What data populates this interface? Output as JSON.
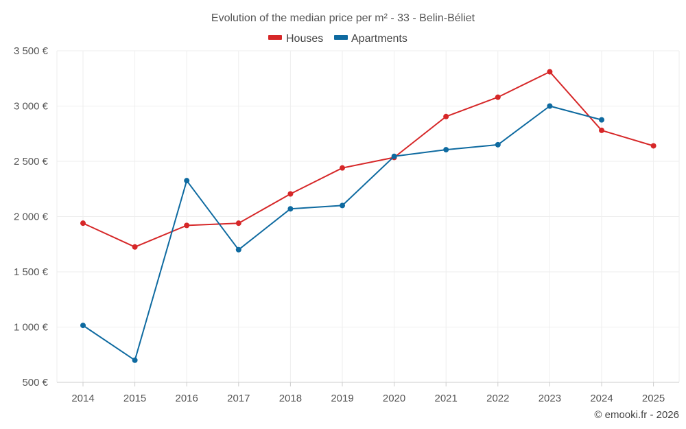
{
  "colors": {
    "houses": "#d62728",
    "apartments": "#0e6aa0",
    "grid": "#eeeeee",
    "axis": "#cccccc",
    "text": "#555555"
  },
  "credit": "© emooki.fr - 2026",
  "chart_data": {
    "type": "line",
    "title": "Evolution of the median price per m² - 33 - Belin-Béliet",
    "xlabel": "",
    "ylabel": "",
    "grid": true,
    "legend_position": "top-center",
    "categories": [
      "2014",
      "2015",
      "2016",
      "2017",
      "2018",
      "2019",
      "2020",
      "2021",
      "2022",
      "2023",
      "2024",
      "2025"
    ],
    "ylim": [
      500,
      3500
    ],
    "yticks": [
      500,
      1000,
      1500,
      2000,
      2500,
      3000,
      3500
    ],
    "ytick_labels": [
      "500 €",
      "1 000 €",
      "1 500 €",
      "2 000 €",
      "2 500 €",
      "3 000 €",
      "3 500 €"
    ],
    "series": [
      {
        "name": "Houses",
        "color_key": "houses",
        "values": [
          1940,
          1725,
          1920,
          1940,
          2205,
          2440,
          2535,
          2905,
          3080,
          3310,
          2780,
          2640
        ]
      },
      {
        "name": "Apartments",
        "color_key": "apartments",
        "values": [
          1015,
          700,
          2325,
          1700,
          2070,
          2100,
          2545,
          2605,
          2650,
          3000,
          2875,
          null
        ]
      }
    ]
  }
}
